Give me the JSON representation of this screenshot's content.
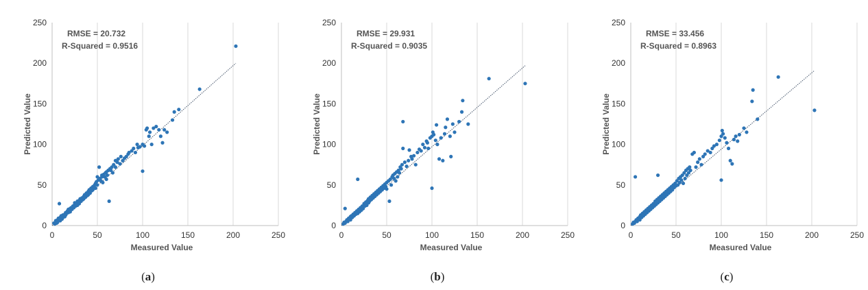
{
  "chart_data": [
    {
      "type": "scatter",
      "panel": "(a)",
      "caption_letter": "a",
      "title": "",
      "xlabel": "Measured Value",
      "ylabel": "Predicted Value",
      "xlim": [
        0,
        250
      ],
      "ylim": [
        0,
        250
      ],
      "xticks": [
        "0",
        "50",
        "100",
        "150",
        "200",
        "250"
      ],
      "yticks": [
        "0",
        "50",
        "100",
        "150",
        "200",
        "250"
      ],
      "grid": "vertical",
      "stats": [
        "RMSE = 20.732",
        "R-Squared = 0.9516"
      ],
      "point_color": "#2e75b6",
      "trendline": [
        [
          0,
          0
        ],
        [
          203,
          200
        ]
      ],
      "points": [
        [
          2,
          3
        ],
        [
          3,
          2
        ],
        [
          4,
          4
        ],
        [
          4,
          6
        ],
        [
          5,
          3
        ],
        [
          5,
          5
        ],
        [
          6,
          7
        ],
        [
          6,
          4
        ],
        [
          7,
          6
        ],
        [
          7,
          9
        ],
        [
          8,
          8
        ],
        [
          8,
          27
        ],
        [
          9,
          6
        ],
        [
          9,
          10
        ],
        [
          10,
          9
        ],
        [
          10,
          12
        ],
        [
          11,
          8
        ],
        [
          11,
          11
        ],
        [
          12,
          13
        ],
        [
          12,
          10
        ],
        [
          13,
          12
        ],
        [
          14,
          14
        ],
        [
          14,
          11
        ],
        [
          15,
          16
        ],
        [
          15,
          13
        ],
        [
          16,
          15
        ],
        [
          17,
          18
        ],
        [
          18,
          16
        ],
        [
          18,
          20
        ],
        [
          19,
          19
        ],
        [
          20,
          21
        ],
        [
          20,
          17
        ],
        [
          21,
          22
        ],
        [
          22,
          20
        ],
        [
          23,
          24
        ],
        [
          24,
          22
        ],
        [
          25,
          26
        ],
        [
          25,
          28
        ],
        [
          26,
          24
        ],
        [
          27,
          27
        ],
        [
          28,
          30
        ],
        [
          28,
          25
        ],
        [
          29,
          29
        ],
        [
          30,
          31
        ],
        [
          30,
          27
        ],
        [
          31,
          33
        ],
        [
          32,
          30
        ],
        [
          33,
          34
        ],
        [
          34,
          32
        ],
        [
          35,
          36
        ],
        [
          35,
          33
        ],
        [
          36,
          38
        ],
        [
          37,
          35
        ],
        [
          38,
          40
        ],
        [
          39,
          37
        ],
        [
          40,
          42
        ],
        [
          40,
          38
        ],
        [
          41,
          44
        ],
        [
          42,
          40
        ],
        [
          43,
          46
        ],
        [
          44,
          43
        ],
        [
          45,
          48
        ],
        [
          45,
          44
        ],
        [
          46,
          47
        ],
        [
          47,
          50
        ],
        [
          48,
          46
        ],
        [
          48,
          52
        ],
        [
          49,
          54
        ],
        [
          50,
          50
        ],
        [
          50,
          60
        ],
        [
          51,
          56
        ],
        [
          52,
          72
        ],
        [
          53,
          58
        ],
        [
          54,
          55
        ],
        [
          55,
          60
        ],
        [
          55,
          62
        ],
        [
          56,
          53
        ],
        [
          57,
          63
        ],
        [
          58,
          60
        ],
        [
          59,
          65
        ],
        [
          60,
          57
        ],
        [
          60,
          66
        ],
        [
          61,
          62
        ],
        [
          62,
          68
        ],
        [
          63,
          30
        ],
        [
          64,
          70
        ],
        [
          65,
          68
        ],
        [
          66,
          72
        ],
        [
          67,
          65
        ],
        [
          68,
          75
        ],
        [
          70,
          72
        ],
        [
          70,
          80
        ],
        [
          72,
          78
        ],
        [
          73,
          82
        ],
        [
          75,
          76
        ],
        [
          76,
          85
        ],
        [
          78,
          80
        ],
        [
          80,
          83
        ],
        [
          82,
          85
        ],
        [
          84,
          88
        ],
        [
          85,
          90
        ],
        [
          88,
          92
        ],
        [
          90,
          95
        ],
        [
          92,
          90
        ],
        [
          94,
          100
        ],
        [
          95,
          96
        ],
        [
          97,
          97
        ],
        [
          100,
          100
        ],
        [
          100,
          67
        ],
        [
          102,
          98
        ],
        [
          104,
          118
        ],
        [
          105,
          120
        ],
        [
          107,
          110
        ],
        [
          108,
          115
        ],
        [
          110,
          100
        ],
        [
          112,
          120
        ],
        [
          115,
          122
        ],
        [
          118,
          118
        ],
        [
          120,
          110
        ],
        [
          122,
          102
        ],
        [
          124,
          118
        ],
        [
          127,
          115
        ],
        [
          133,
          130
        ],
        [
          135,
          140
        ],
        [
          140,
          143
        ],
        [
          163,
          168
        ],
        [
          203,
          221
        ]
      ]
    },
    {
      "type": "scatter",
      "panel": "(b)",
      "caption_letter": "b",
      "title": "",
      "xlabel": "Measured Value",
      "ylabel": "Predicted Value",
      "xlim": [
        0,
        250
      ],
      "ylim": [
        0,
        250
      ],
      "xticks": [
        "0",
        "50",
        "100",
        "150",
        "200",
        "250"
      ],
      "yticks": [
        "0",
        "50",
        "100",
        "150",
        "200",
        "250"
      ],
      "grid": "vertical",
      "stats": [
        "RMSE = 29.931",
        "R-Squared =  0.9035"
      ],
      "point_color": "#2e75b6",
      "trendline": [
        [
          0,
          0
        ],
        [
          203,
          197
        ]
      ],
      "points": [
        [
          2,
          2
        ],
        [
          3,
          4
        ],
        [
          4,
          3
        ],
        [
          4,
          21
        ],
        [
          5,
          5
        ],
        [
          6,
          7
        ],
        [
          7,
          5
        ],
        [
          8,
          9
        ],
        [
          9,
          8
        ],
        [
          10,
          11
        ],
        [
          10,
          7
        ],
        [
          11,
          12
        ],
        [
          12,
          10
        ],
        [
          13,
          14
        ],
        [
          14,
          12
        ],
        [
          15,
          16
        ],
        [
          16,
          14
        ],
        [
          17,
          18
        ],
        [
          18,
          15
        ],
        [
          18,
          57
        ],
        [
          19,
          20
        ],
        [
          20,
          17
        ],
        [
          21,
          22
        ],
        [
          22,
          19
        ],
        [
          23,
          24
        ],
        [
          24,
          21
        ],
        [
          25,
          27
        ],
        [
          26,
          24
        ],
        [
          27,
          29
        ],
        [
          28,
          25
        ],
        [
          29,
          31
        ],
        [
          30,
          28
        ],
        [
          30,
          33
        ],
        [
          31,
          30
        ],
        [
          32,
          35
        ],
        [
          33,
          32
        ],
        [
          34,
          37
        ],
        [
          35,
          34
        ],
        [
          36,
          39
        ],
        [
          37,
          36
        ],
        [
          38,
          41
        ],
        [
          39,
          38
        ],
        [
          40,
          43
        ],
        [
          41,
          40
        ],
        [
          42,
          45
        ],
        [
          43,
          42
        ],
        [
          44,
          47
        ],
        [
          45,
          44
        ],
        [
          46,
          49
        ],
        [
          47,
          46
        ],
        [
          48,
          51
        ],
        [
          49,
          48
        ],
        [
          50,
          53
        ],
        [
          50,
          45
        ],
        [
          52,
          55
        ],
        [
          53,
          30
        ],
        [
          54,
          57
        ],
        [
          55,
          50
        ],
        [
          56,
          60
        ],
        [
          57,
          62
        ],
        [
          58,
          58
        ],
        [
          59,
          64
        ],
        [
          60,
          55
        ],
        [
          61,
          66
        ],
        [
          62,
          60
        ],
        [
          63,
          68
        ],
        [
          64,
          65
        ],
        [
          65,
          72
        ],
        [
          66,
          70
        ],
        [
          67,
          75
        ],
        [
          68,
          95
        ],
        [
          68,
          128
        ],
        [
          70,
          78
        ],
        [
          72,
          73
        ],
        [
          74,
          80
        ],
        [
          75,
          93
        ],
        [
          77,
          85
        ],
        [
          78,
          82
        ],
        [
          80,
          86
        ],
        [
          82,
          75
        ],
        [
          84,
          90
        ],
        [
          86,
          94
        ],
        [
          88,
          92
        ],
        [
          90,
          100
        ],
        [
          92,
          96
        ],
        [
          94,
          104
        ],
        [
          95,
          102
        ],
        [
          96,
          95
        ],
        [
          98,
          108
        ],
        [
          100,
          46
        ],
        [
          100,
          110
        ],
        [
          101,
          115
        ],
        [
          102,
          112
        ],
        [
          104,
          105
        ],
        [
          105,
          124
        ],
        [
          106,
          100
        ],
        [
          108,
          82
        ],
        [
          110,
          108
        ],
        [
          112,
          80
        ],
        [
          114,
          113
        ],
        [
          115,
          121
        ],
        [
          117,
          131
        ],
        [
          120,
          110
        ],
        [
          121,
          85
        ],
        [
          123,
          125
        ],
        [
          125,
          115
        ],
        [
          130,
          128
        ],
        [
          133,
          140
        ],
        [
          134,
          154
        ],
        [
          140,
          125
        ],
        [
          163,
          181
        ],
        [
          203,
          175
        ]
      ]
    },
    {
      "type": "scatter",
      "panel": "(c)",
      "caption_letter": "c",
      "title": "",
      "xlabel": "Measured Value",
      "ylabel": "Predicted Value",
      "xlim": [
        0,
        250
      ],
      "ylim": [
        0,
        250
      ],
      "xticks": [
        "0",
        "50",
        "100",
        "150",
        "200",
        "250"
      ],
      "yticks": [
        "0",
        "50",
        "100",
        "150",
        "200",
        "250"
      ],
      "grid": "vertical",
      "stats": [
        "RMSE = 33.456",
        "R-Squared = 0.8963"
      ],
      "point_color": "#2e75b6",
      "trendline": [
        [
          0,
          0
        ],
        [
          203,
          191
        ]
      ],
      "points": [
        [
          2,
          2
        ],
        [
          3,
          4
        ],
        [
          4,
          3
        ],
        [
          5,
          5
        ],
        [
          5,
          60
        ],
        [
          6,
          7
        ],
        [
          7,
          5
        ],
        [
          8,
          9
        ],
        [
          9,
          8
        ],
        [
          10,
          11
        ],
        [
          10,
          7
        ],
        [
          11,
          13
        ],
        [
          12,
          10
        ],
        [
          13,
          15
        ],
        [
          14,
          12
        ],
        [
          15,
          17
        ],
        [
          16,
          14
        ],
        [
          17,
          19
        ],
        [
          18,
          16
        ],
        [
          19,
          21
        ],
        [
          20,
          18
        ],
        [
          21,
          23
        ],
        [
          22,
          20
        ],
        [
          23,
          25
        ],
        [
          24,
          22
        ],
        [
          25,
          27
        ],
        [
          26,
          24
        ],
        [
          27,
          30
        ],
        [
          28,
          26
        ],
        [
          29,
          32
        ],
        [
          30,
          28
        ],
        [
          30,
          62
        ],
        [
          31,
          34
        ],
        [
          32,
          30
        ],
        [
          33,
          36
        ],
        [
          34,
          32
        ],
        [
          35,
          38
        ],
        [
          36,
          34
        ],
        [
          37,
          40
        ],
        [
          38,
          36
        ],
        [
          39,
          42
        ],
        [
          40,
          38
        ],
        [
          41,
          44
        ],
        [
          42,
          40
        ],
        [
          43,
          46
        ],
        [
          44,
          42
        ],
        [
          45,
          48
        ],
        [
          46,
          44
        ],
        [
          47,
          50
        ],
        [
          48,
          47
        ],
        [
          49,
          52
        ],
        [
          50,
          49
        ],
        [
          51,
          55
        ],
        [
          52,
          50
        ],
        [
          53,
          58
        ],
        [
          54,
          53
        ],
        [
          55,
          60
        ],
        [
          56,
          56
        ],
        [
          57,
          62
        ],
        [
          58,
          52
        ],
        [
          59,
          65
        ],
        [
          60,
          58
        ],
        [
          61,
          68
        ],
        [
          62,
          62
        ],
        [
          63,
          70
        ],
        [
          64,
          65
        ],
        [
          65,
          72
        ],
        [
          66,
          68
        ],
        [
          68,
          88
        ],
        [
          70,
          90
        ],
        [
          72,
          72
        ],
        [
          74,
          78
        ],
        [
          76,
          82
        ],
        [
          78,
          75
        ],
        [
          80,
          85
        ],
        [
          82,
          88
        ],
        [
          85,
          92
        ],
        [
          88,
          90
        ],
        [
          90,
          95
        ],
        [
          92,
          98
        ],
        [
          95,
          100
        ],
        [
          98,
          105
        ],
        [
          100,
          56
        ],
        [
          100,
          110
        ],
        [
          101,
          117
        ],
        [
          102,
          113
        ],
        [
          104,
          108
        ],
        [
          106,
          102
        ],
        [
          108,
          95
        ],
        [
          110,
          80
        ],
        [
          112,
          76
        ],
        [
          114,
          106
        ],
        [
          116,
          110
        ],
        [
          118,
          104
        ],
        [
          120,
          112
        ],
        [
          125,
          120
        ],
        [
          128,
          115
        ],
        [
          134,
          153
        ],
        [
          135,
          167
        ],
        [
          140,
          131
        ],
        [
          163,
          183
        ],
        [
          203,
          142
        ]
      ]
    }
  ]
}
